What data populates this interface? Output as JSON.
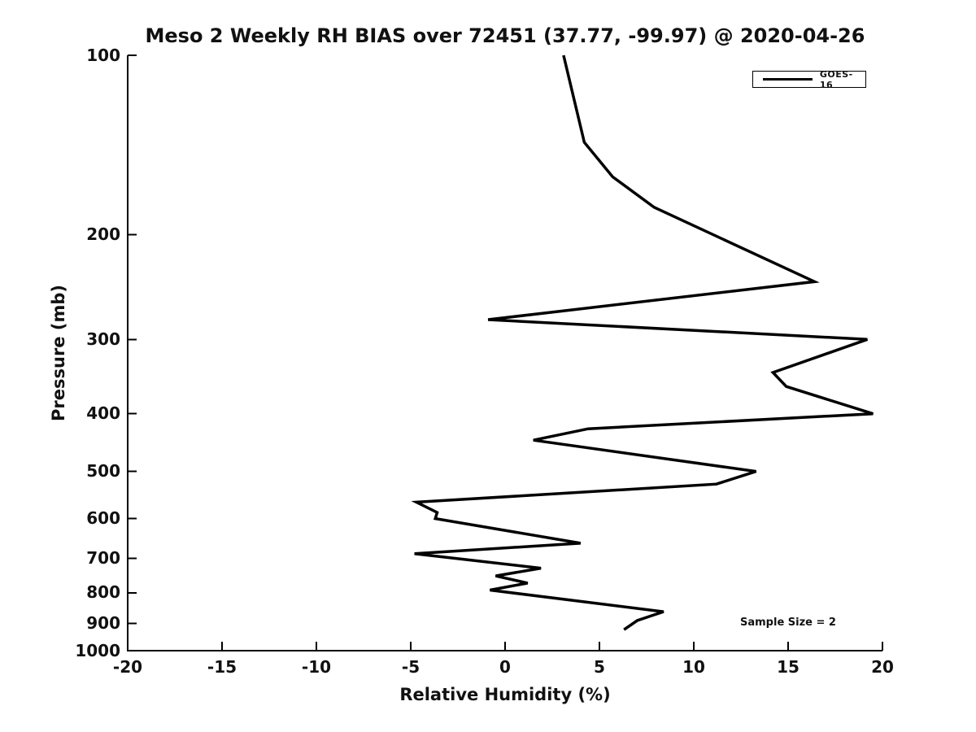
{
  "title": "Meso 2 Weekly RH BIAS over 72451 (37.77, -99.97) @ 2020-04-26",
  "axes": {
    "x": {
      "label": "Relative Humidity (%)",
      "ticks": [
        "-20",
        "-15",
        "-10",
        "-5",
        "0",
        "5",
        "10",
        "15",
        "20"
      ]
    },
    "y": {
      "label": "Pressure (mb)",
      "ticks": [
        "100",
        "200",
        "300",
        "400",
        "500",
        "600",
        "700",
        "800",
        "900",
        "1000"
      ]
    }
  },
  "legend": {
    "entries": [
      {
        "label": "GOES-16",
        "color": "#000000"
      }
    ]
  },
  "annotation": {
    "sample_size": "Sample Size = 2"
  },
  "chart_data": {
    "type": "line",
    "title": "Meso 2 Weekly RH BIAS over 72451 (37.77, -99.97) @ 2020-04-26",
    "xlabel": "Relative Humidity (%)",
    "ylabel": "Pressure (mb)",
    "xlim": [
      -20,
      20
    ],
    "ylim": [
      100,
      1000
    ],
    "y_scale": "log",
    "y_inverted": true,
    "grid": false,
    "legend_position": "upper right",
    "annotations": [
      "Sample Size = 2"
    ],
    "line_color": "#000000",
    "series": [
      {
        "name": "GOES-16",
        "color": "#000000",
        "points": [
          {
            "pressure_mb": 100,
            "rh_bias_pct": 3.1
          },
          {
            "pressure_mb": 140,
            "rh_bias_pct": 4.2
          },
          {
            "pressure_mb": 160,
            "rh_bias_pct": 5.7
          },
          {
            "pressure_mb": 180,
            "rh_bias_pct": 7.9
          },
          {
            "pressure_mb": 240,
            "rh_bias_pct": 16.4
          },
          {
            "pressure_mb": 278,
            "rh_bias_pct": -0.9
          },
          {
            "pressure_mb": 300,
            "rh_bias_pct": 19.2
          },
          {
            "pressure_mb": 341,
            "rh_bias_pct": 14.2
          },
          {
            "pressure_mb": 360,
            "rh_bias_pct": 14.9
          },
          {
            "pressure_mb": 400,
            "rh_bias_pct": 19.5
          },
          {
            "pressure_mb": 424,
            "rh_bias_pct": 4.4
          },
          {
            "pressure_mb": 443,
            "rh_bias_pct": 1.5
          },
          {
            "pressure_mb": 500,
            "rh_bias_pct": 13.3
          },
          {
            "pressure_mb": 525,
            "rh_bias_pct": 11.2
          },
          {
            "pressure_mb": 563,
            "rh_bias_pct": -4.7
          },
          {
            "pressure_mb": 586,
            "rh_bias_pct": -3.6
          },
          {
            "pressure_mb": 600,
            "rh_bias_pct": -3.7
          },
          {
            "pressure_mb": 660,
            "rh_bias_pct": 4.0
          },
          {
            "pressure_mb": 687,
            "rh_bias_pct": -4.8
          },
          {
            "pressure_mb": 727,
            "rh_bias_pct": 1.9
          },
          {
            "pressure_mb": 749,
            "rh_bias_pct": -0.5
          },
          {
            "pressure_mb": 770,
            "rh_bias_pct": 1.2
          },
          {
            "pressure_mb": 791,
            "rh_bias_pct": -0.8
          },
          {
            "pressure_mb": 860,
            "rh_bias_pct": 8.4
          },
          {
            "pressure_mb": 875,
            "rh_bias_pct": 7.7
          },
          {
            "pressure_mb": 890,
            "rh_bias_pct": 7.0
          },
          {
            "pressure_mb": 922,
            "rh_bias_pct": 6.3
          }
        ]
      }
    ]
  }
}
